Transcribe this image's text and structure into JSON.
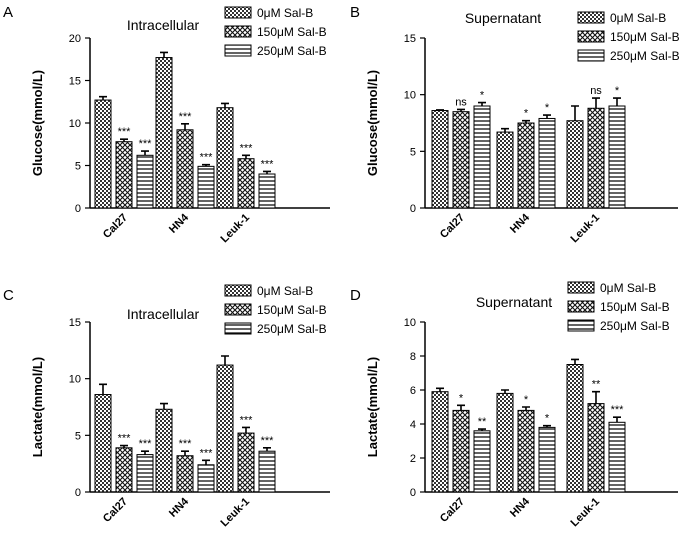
{
  "chart_data": [
    {
      "type": "bar",
      "panel": "A",
      "title": "Intracellular",
      "ylabel": "Glucose(mmol/L)",
      "ylim": [
        0,
        20
      ],
      "yticks": [
        "0",
        "5",
        "10",
        "15",
        "20"
      ],
      "categories": [
        "Cal27",
        "HN4",
        "Leuk-1"
      ],
      "series": [
        {
          "name": "0μM Sal-B",
          "values": [
            12.7,
            17.7,
            11.8
          ],
          "errors": [
            0.4,
            0.6,
            0.5
          ],
          "sig": [
            "",
            "",
            ""
          ]
        },
        {
          "name": "150μM Sal-B",
          "values": [
            7.8,
            9.2,
            5.8
          ],
          "errors": [
            0.3,
            0.7,
            0.4
          ],
          "sig": [
            "***",
            "***",
            "***"
          ]
        },
        {
          "name": "250μM Sal-B",
          "values": [
            6.2,
            4.9,
            4.0
          ],
          "errors": [
            0.5,
            0.2,
            0.3
          ],
          "sig": [
            "***",
            "***",
            "***"
          ]
        }
      ]
    },
    {
      "type": "bar",
      "panel": "B",
      "title": "Supernatant",
      "ylabel": "Glucose(mmol/L)",
      "ylim": [
        0,
        15
      ],
      "yticks": [
        "0",
        "5",
        "10",
        "15"
      ],
      "categories": [
        "Cal27",
        "HN4",
        "Leuk-1"
      ],
      "series": [
        {
          "name": "0μM Sal-B",
          "values": [
            8.6,
            6.7,
            7.7
          ],
          "errors": [
            0.05,
            0.3,
            1.3
          ],
          "sig": [
            "",
            "",
            ""
          ]
        },
        {
          "name": "150μM Sal-B",
          "values": [
            8.5,
            7.5,
            8.8
          ],
          "errors": [
            0.2,
            0.2,
            0.9
          ],
          "sig": [
            "ns",
            "*",
            "ns"
          ]
        },
        {
          "name": "250μM Sal-B",
          "values": [
            9.0,
            7.9,
            9.0
          ],
          "errors": [
            0.3,
            0.3,
            0.7
          ],
          "sig": [
            "*",
            "*",
            "*"
          ]
        }
      ]
    },
    {
      "type": "bar",
      "panel": "C",
      "title": "Intracellular",
      "ylabel": "Lactate(mmol/L)",
      "ylim": [
        0,
        15
      ],
      "yticks": [
        "0",
        "5",
        "10",
        "15"
      ],
      "categories": [
        "Cal27",
        "HN4",
        "Leuk-1"
      ],
      "series": [
        {
          "name": "0μM Sal-B",
          "values": [
            8.6,
            7.3,
            11.2
          ],
          "errors": [
            0.9,
            0.5,
            0.8
          ],
          "sig": [
            "",
            "",
            ""
          ]
        },
        {
          "name": "150μM Sal-B",
          "values": [
            3.9,
            3.2,
            5.2
          ],
          "errors": [
            0.2,
            0.4,
            0.5
          ],
          "sig": [
            "***",
            "***",
            "***"
          ]
        },
        {
          "name": "250μM Sal-B",
          "values": [
            3.3,
            2.4,
            3.6
          ],
          "errors": [
            0.3,
            0.4,
            0.3
          ],
          "sig": [
            "***",
            "***",
            "***"
          ]
        }
      ]
    },
    {
      "type": "bar",
      "panel": "D",
      "title": "Supernatant",
      "ylabel": "Lactate(mmol/L)",
      "ylim": [
        0,
        10
      ],
      "yticks": [
        "0",
        "2",
        "4",
        "6",
        "8",
        "10"
      ],
      "categories": [
        "Cal27",
        "HN4",
        "Leuk-1"
      ],
      "series": [
        {
          "name": "0μM Sal-B",
          "values": [
            5.9,
            5.8,
            7.5
          ],
          "errors": [
            0.2,
            0.2,
            0.3
          ],
          "sig": [
            "",
            "",
            ""
          ]
        },
        {
          "name": "150μM Sal-B",
          "values": [
            4.8,
            4.8,
            5.2
          ],
          "errors": [
            0.3,
            0.2,
            0.7
          ],
          "sig": [
            "*",
            "*",
            "**"
          ]
        },
        {
          "name": "250μM Sal-B",
          "values": [
            3.6,
            3.8,
            4.1
          ],
          "errors": [
            0.1,
            0.1,
            0.3
          ],
          "sig": [
            "**",
            "*",
            "***"
          ]
        }
      ]
    }
  ]
}
